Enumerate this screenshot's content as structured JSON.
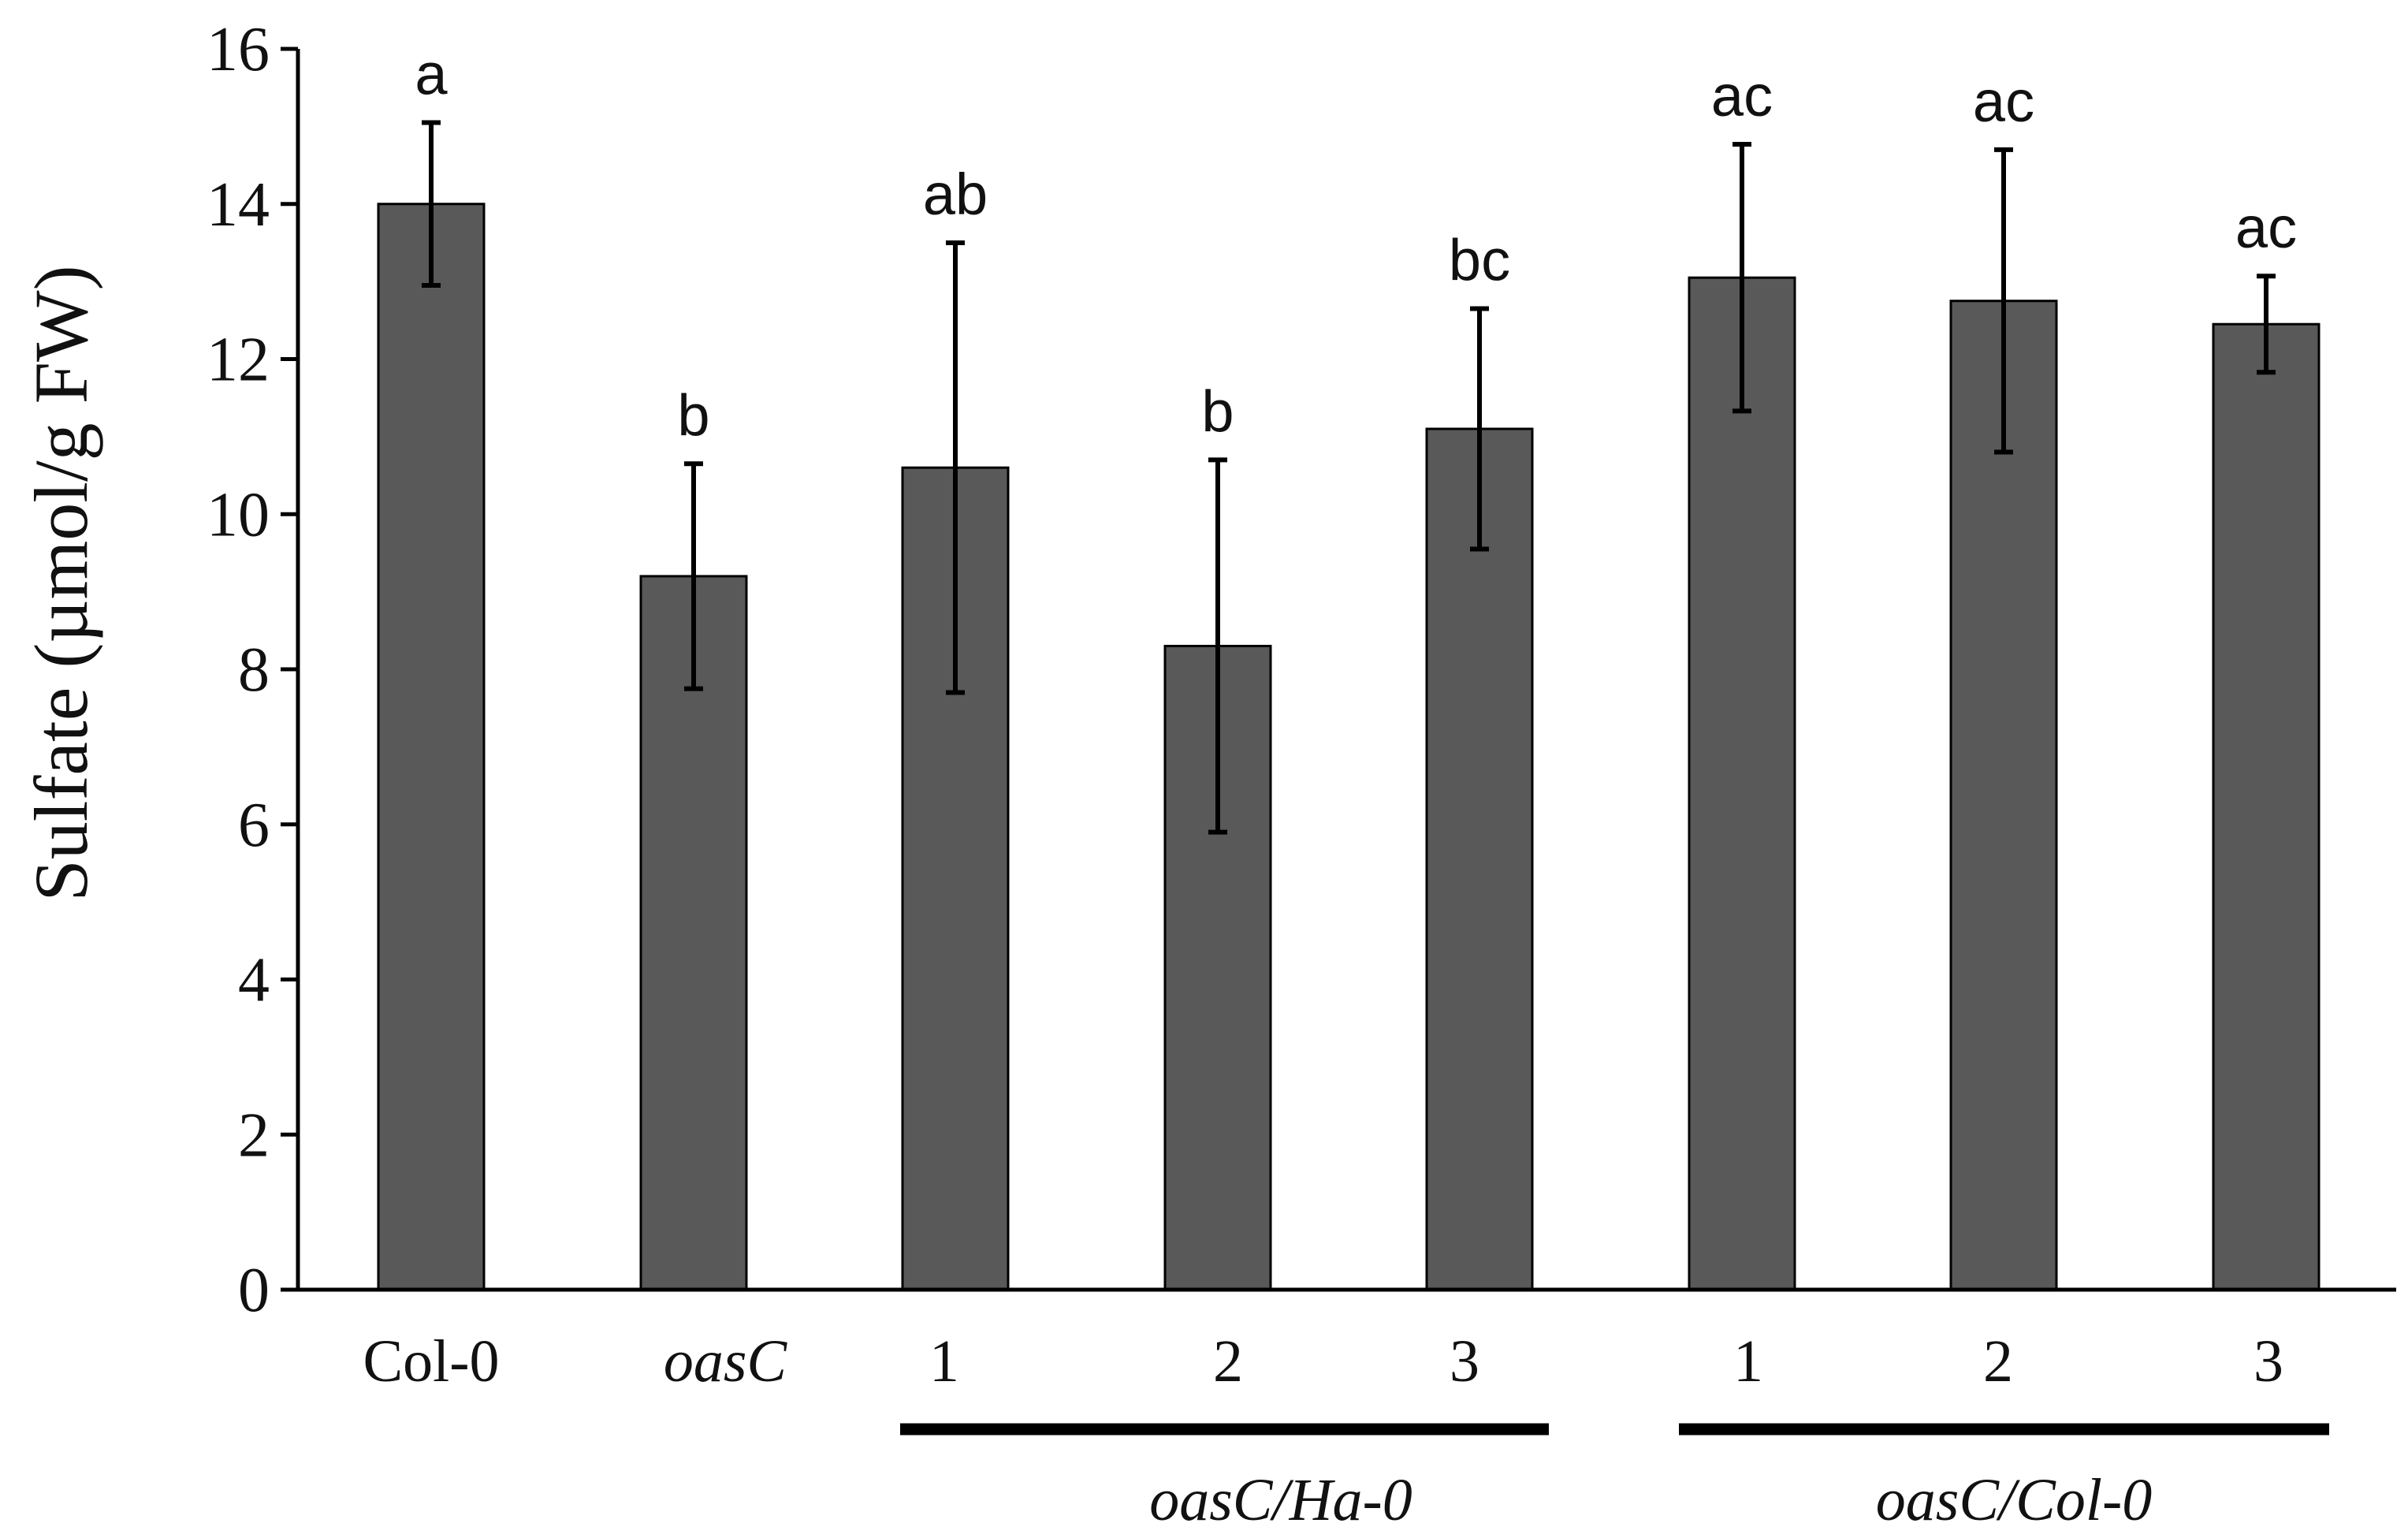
{
  "chart_data": {
    "type": "bar",
    "title": "",
    "xlabel": "",
    "ylabel": "Sulfate (µmol/g FW)",
    "ylim": [
      0,
      16
    ],
    "yticks": [
      0,
      2,
      4,
      6,
      8,
      10,
      12,
      14,
      16
    ],
    "grid": false,
    "categories": [
      "Col-0",
      "oasC",
      "1",
      "2",
      "3",
      "1",
      "2",
      "3"
    ],
    "italic_categories": [
      false,
      true,
      false,
      false,
      false,
      false,
      false,
      false
    ],
    "values": [
      14.0,
      9.2,
      10.6,
      8.3,
      11.1,
      13.05,
      12.75,
      12.45
    ],
    "errors": [
      1.05,
      1.45,
      2.9,
      2.4,
      1.55,
      1.72,
      1.95,
      0.62
    ],
    "significance": [
      "a",
      "b",
      "ab",
      "b",
      "bc",
      "ac",
      "ac",
      "ac"
    ],
    "groups": [
      {
        "label": "oasC/Ha-0",
        "from": 2,
        "to": 4
      },
      {
        "label": "oasC/Col-0",
        "from": 5,
        "to": 7
      }
    ],
    "colors": {
      "bar": "#595959",
      "bar_edge": "#000000",
      "axis": "#000000",
      "text": "#111111"
    }
  }
}
